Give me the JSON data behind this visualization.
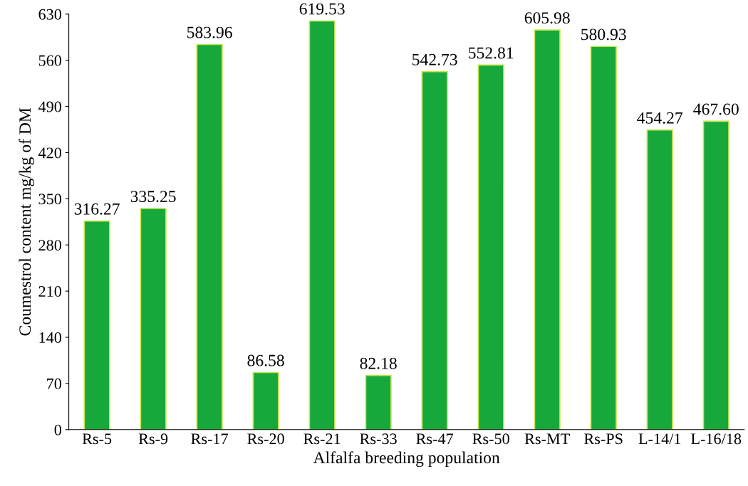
{
  "chart_data": {
    "type": "bar",
    "xlabel": "Alfalfa breeding population",
    "ylabel": "Coumestrol content mg/kg of DM",
    "categories": [
      "Rs-5",
      "Rs-9",
      "Rs-17",
      "Rs-20",
      "Rs-21",
      "Rs-33",
      "Rs-47",
      "Rs-50",
      "Rs-MT",
      "Rs-PS",
      "L-14/1",
      "L-16/18"
    ],
    "values": [
      316.27,
      335.25,
      583.96,
      86.58,
      619.53,
      82.18,
      542.73,
      552.81,
      605.98,
      580.93,
      454.27,
      467.6
    ],
    "value_labels": [
      "316.27",
      "335.25",
      "583.96",
      "86.58",
      "619.53",
      "82.18",
      "542.73",
      "552.81",
      "605.98",
      "580.93",
      "454.27",
      "467.60"
    ],
    "color": "#17a83c",
    "ylim": [
      0,
      630
    ],
    "yticks": [
      0,
      70,
      140,
      210,
      280,
      350,
      420,
      490,
      560,
      630
    ],
    "grid": false,
    "legend": false
  }
}
